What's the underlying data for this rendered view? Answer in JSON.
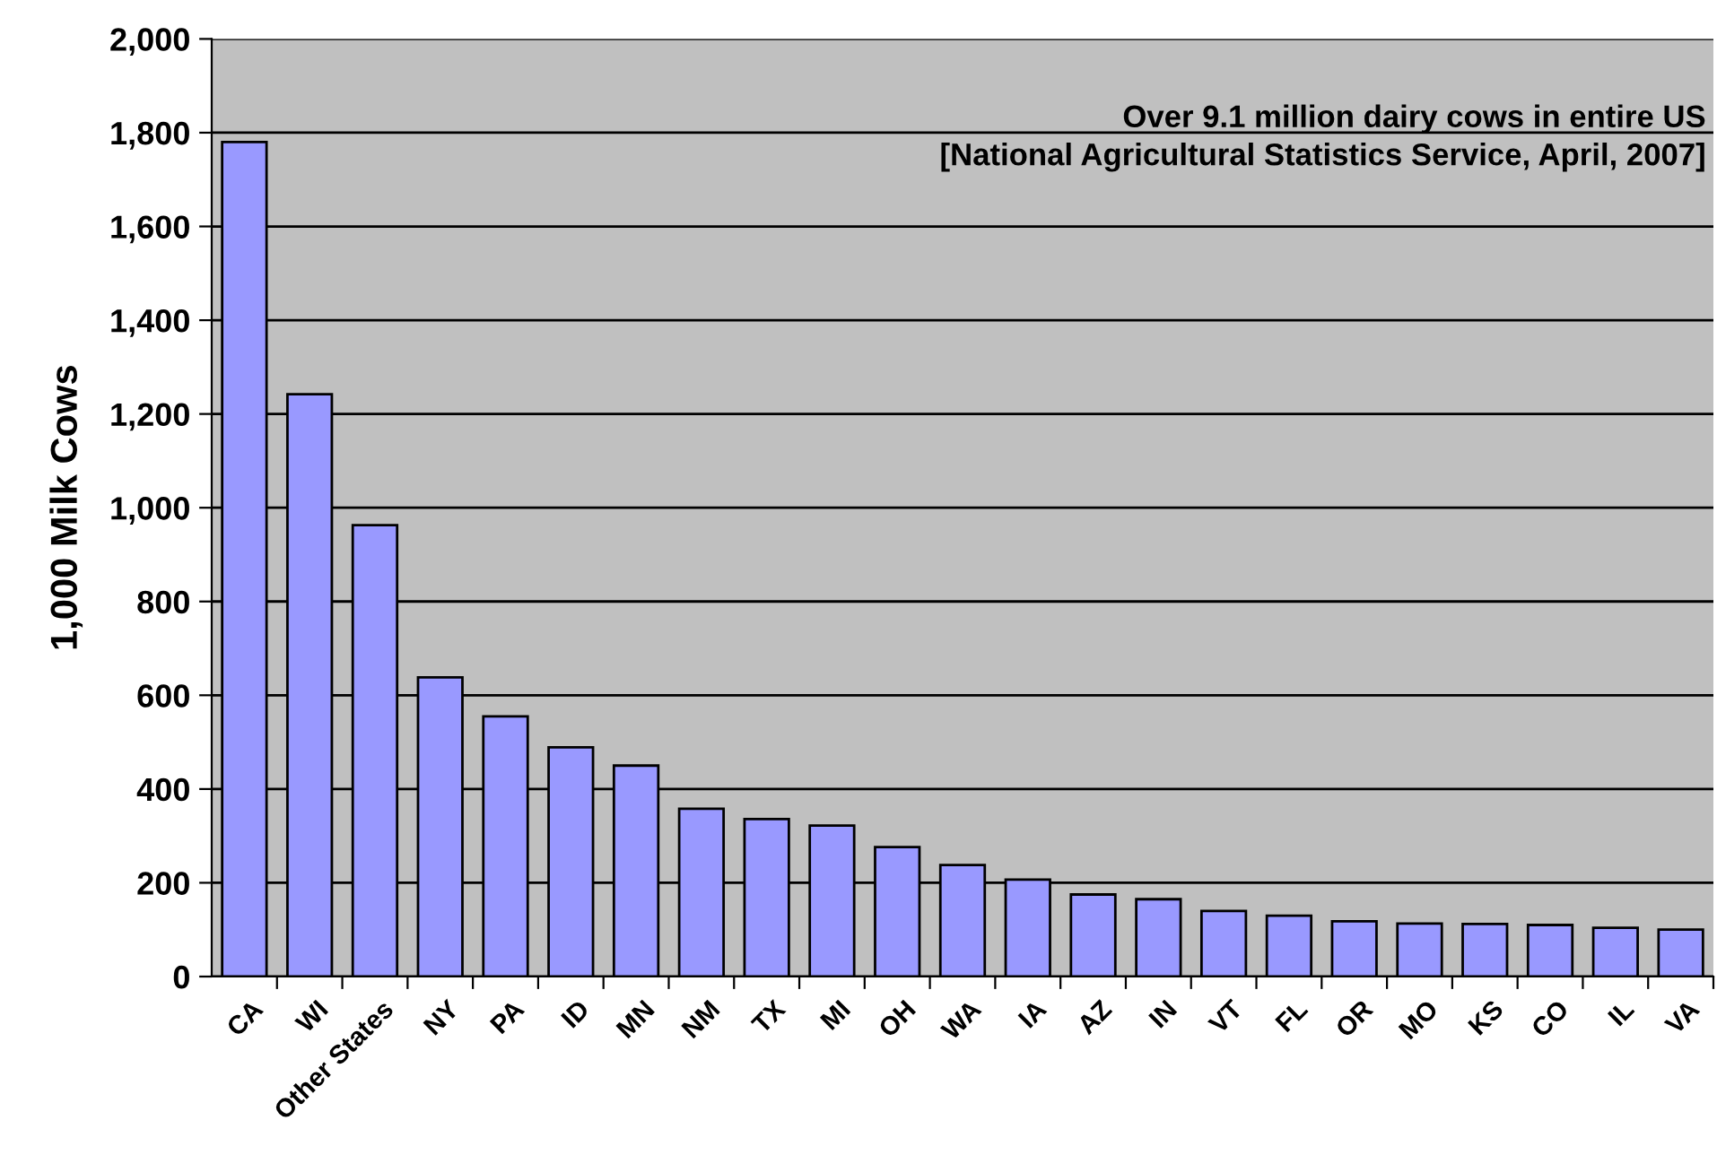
{
  "chart_data": {
    "type": "bar",
    "ylabel": "1,000 Milk Cows",
    "categories": [
      "CA",
      "WI",
      "Other States",
      "NY",
      "PA",
      "ID",
      "MN",
      "NM",
      "TX",
      "MI",
      "OH",
      "WA",
      "IA",
      "AZ",
      "IN",
      "VT",
      "FL",
      "OR",
      "MO",
      "KS",
      "CO",
      "IL",
      "VA"
    ],
    "values": [
      1780,
      1242,
      963,
      638,
      555,
      489,
      450,
      358,
      336,
      322,
      276,
      238,
      207,
      175,
      165,
      140,
      130,
      118,
      113,
      112,
      110,
      104,
      100
    ],
    "color": "#9999ff",
    "ylim": [
      0,
      2000
    ],
    "yticks": [
      {
        "value": 0,
        "label": "0"
      },
      {
        "value": 200,
        "label": "200"
      },
      {
        "value": 400,
        "label": "400"
      },
      {
        "value": 600,
        "label": "600"
      },
      {
        "value": 800,
        "label": "800"
      },
      {
        "value": 1000,
        "label": "1,000"
      },
      {
        "value": 1200,
        "label": "1,200"
      },
      {
        "value": 1400,
        "label": "1,400"
      },
      {
        "value": 1600,
        "label": "1,600"
      },
      {
        "value": 1800,
        "label": "1,800"
      },
      {
        "value": 2000,
        "label": "2,000"
      }
    ],
    "grid": "y",
    "annotations": [
      "Over 9.1 million dairy cows in entire US\n[National Agricultural Statistics Service, April, 2007]"
    ]
  }
}
